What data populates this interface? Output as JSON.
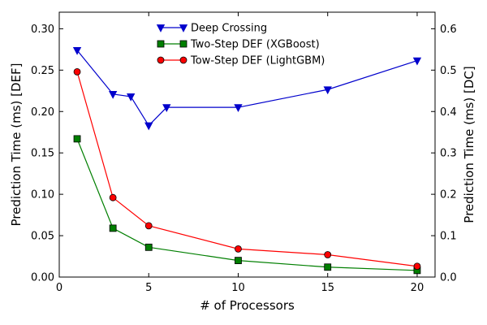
{
  "chart_data": {
    "type": "line",
    "title": "",
    "xlabel": "# of Processors",
    "ylabel_left": "Prediction Time (ms) [DEF]",
    "ylabel_right": "Prediction Time (ms) [DC]",
    "xlim": [
      0,
      21
    ],
    "ylim_left": [
      0,
      0.32
    ],
    "ylim_right": [
      0,
      0.64
    ],
    "xticks": [
      0,
      5,
      10,
      15,
      20
    ],
    "yticks_left": [
      "0.00",
      "0.05",
      "0.10",
      "0.15",
      "0.20",
      "0.25",
      "0.30"
    ],
    "yticks_right": [
      "0.0",
      "0.1",
      "0.2",
      "0.3",
      "0.4",
      "0.5",
      "0.6"
    ],
    "legend_position": "top-center",
    "grid": false,
    "series": [
      {
        "name": "Deep Crossing",
        "axis": "right",
        "color": "#0000cc",
        "marker": "triangle-down",
        "x": [
          1,
          3,
          4,
          5,
          6,
          10,
          15,
          20
        ],
        "values": [
          0.548,
          0.442,
          0.436,
          0.366,
          0.41,
          0.41,
          0.453,
          0.523
        ]
      },
      {
        "name": "Two-Step DEF (XGBoost)",
        "axis": "left",
        "color": "#007f00",
        "marker": "square",
        "x": [
          1,
          3,
          5,
          10,
          15,
          20
        ],
        "values": [
          0.167,
          0.059,
          0.036,
          0.02,
          0.012,
          0.008
        ]
      },
      {
        "name": "Tow-Step DEF (LightGBM)",
        "axis": "left",
        "color": "#ff0000",
        "marker": "circle",
        "x": [
          1,
          3,
          5,
          10,
          15,
          20
        ],
        "values": [
          0.248,
          0.096,
          0.062,
          0.034,
          0.027,
          0.013
        ]
      }
    ]
  }
}
